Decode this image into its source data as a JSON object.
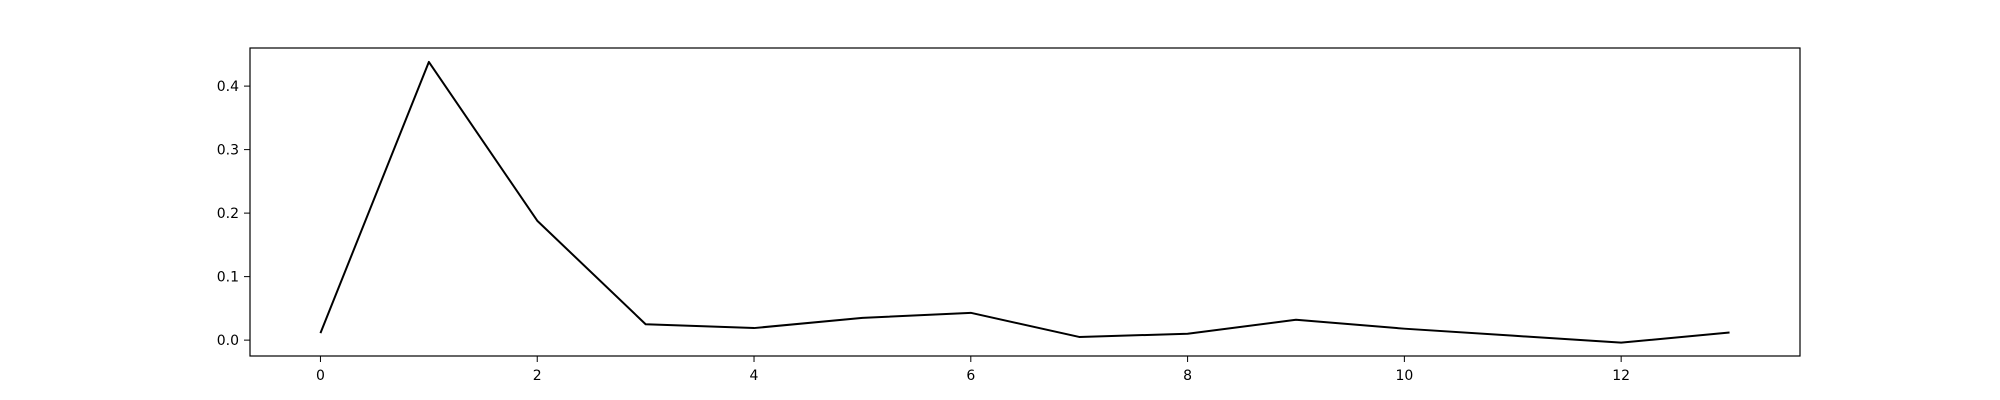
{
  "chart_data": {
    "type": "line",
    "title": "",
    "xlabel": "",
    "ylabel": "",
    "x": [
      0,
      1,
      2,
      3,
      4,
      5,
      6,
      7,
      8,
      9,
      10,
      11,
      12,
      13
    ],
    "series": [
      {
        "values": [
          0.011,
          0.438,
          0.188,
          0.025,
          0.019,
          0.035,
          0.043,
          0.005,
          0.01,
          0.032,
          0.018,
          0.007,
          -0.004,
          0.012
        ],
        "color": "#000000"
      }
    ],
    "xlim": [
      -0.65,
      13.65
    ],
    "ylim": [
      -0.025,
      0.46
    ],
    "xticks": [
      "0",
      "2",
      "4",
      "6",
      "8",
      "10",
      "12"
    ],
    "yticks": [
      "0.0",
      "0.1",
      "0.2",
      "0.3",
      "0.4"
    ],
    "grid": false,
    "legend": "none"
  }
}
